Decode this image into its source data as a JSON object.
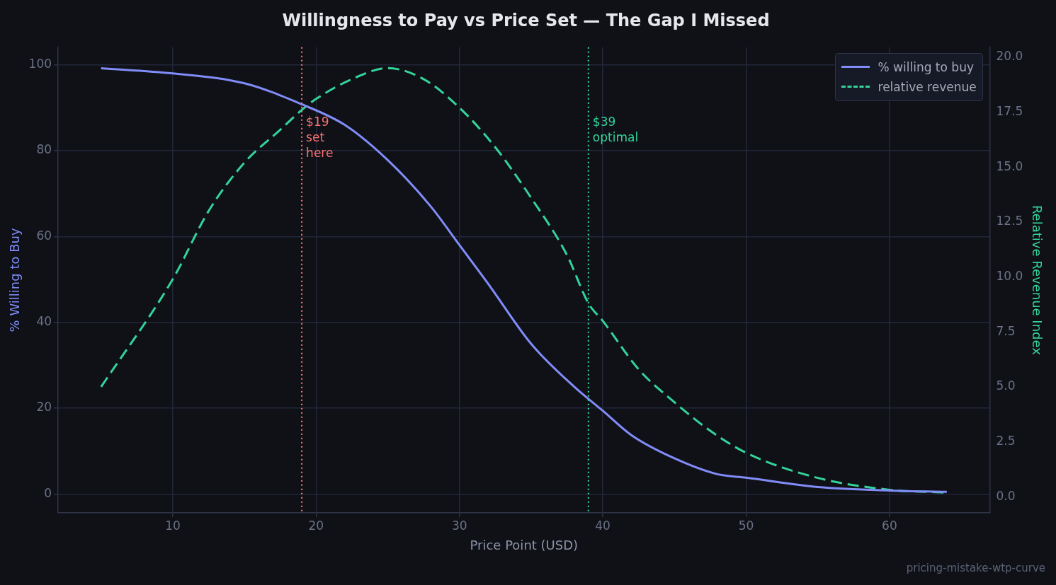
{
  "chart_data": {
    "type": "line",
    "title": "Willingness to Pay vs Price Set — The Gap I Missed",
    "xlabel": "Price Point (USD)",
    "ylabel": "% Willing to Buy",
    "y2label": "Relative Revenue Index",
    "xlim": [
      2,
      67
    ],
    "xticks": [
      10,
      20,
      30,
      40,
      50,
      60
    ],
    "ylim": [
      -4.4,
      104.1
    ],
    "yticks": [
      0,
      20,
      40,
      60,
      80,
      100
    ],
    "y2lim": [
      -0.73,
      20.45
    ],
    "y2ticks": [
      {
        "value": 0,
        "label": "0.0"
      },
      {
        "value": 2.5,
        "label": "2.5"
      },
      {
        "value": 5,
        "label": "5.0"
      },
      {
        "value": 7.5,
        "label": "7.5"
      },
      {
        "value": 10,
        "label": "10.0"
      },
      {
        "value": 12.5,
        "label": "12.5"
      },
      {
        "value": 15,
        "label": "15.0"
      },
      {
        "value": 17.5,
        "label": "17.5"
      },
      {
        "value": 20,
        "label": "20.0"
      }
    ],
    "grid": true,
    "legend": "top right",
    "marker": "none",
    "series": [
      {
        "name": "% willing to buy",
        "color": "#818cf8",
        "line_style": "solid",
        "x": [
          5,
          10,
          15,
          19,
          22,
          25,
          28,
          30,
          32,
          35,
          38,
          40,
          42,
          45,
          48,
          50,
          55,
          60,
          64
        ],
        "values": [
          99.2,
          98.0,
          95.7,
          90.8,
          86,
          77.8,
          67,
          58,
          49,
          35,
          25,
          19.4,
          13.7,
          8.3,
          4.6,
          3.8,
          1.6,
          0.8,
          0.5
        ]
      },
      {
        "name": "relative revenue",
        "color": "#34d399",
        "line_style": "dashed",
        "axis": "y2",
        "x": [
          5,
          10,
          12.5,
          15,
          17.5,
          19,
          20,
          22.5,
          25,
          27.5,
          30,
          32.5,
          35,
          37.5,
          39,
          40,
          42.5,
          45,
          47.5,
          50,
          55,
          60,
          64
        ],
        "values": [
          5.0,
          9.9,
          13.0,
          15.2,
          16.7,
          17.6,
          18.1,
          19.0,
          19.5,
          19.0,
          17.7,
          15.9,
          13.6,
          11.0,
          8.8,
          8.0,
          5.8,
          4.3,
          3.0,
          2.0,
          0.86,
          0.32,
          0.19
        ]
      }
    ],
    "ref_lines": [
      {
        "axis": "x",
        "value": 19,
        "label": "$19\nset\nhere",
        "color": "#f87171",
        "line_style": "dotted"
      },
      {
        "axis": "x",
        "value": 39,
        "label": "$39\noptimal",
        "color": "#34d399",
        "line_style": "dotted"
      }
    ],
    "annotations": [
      "pricing-mistake-wtp-curve"
    ]
  }
}
